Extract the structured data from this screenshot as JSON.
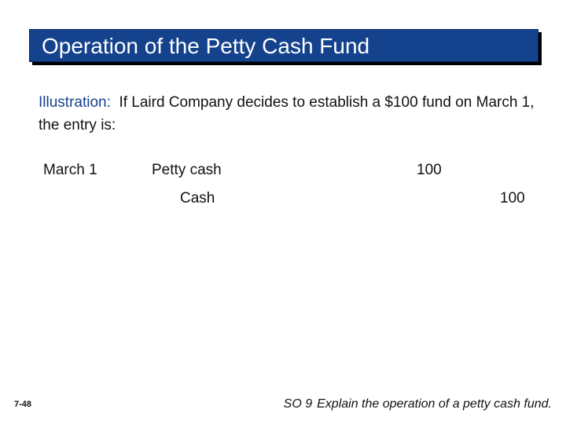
{
  "title": "Operation of the Petty Cash Fund",
  "illustration": {
    "label": "Illustration:",
    "text": "If Laird Company decides to establish a $100 fund on March 1, the entry is:"
  },
  "journal_entry": {
    "date": "March 1",
    "debit_account": "Petty cash",
    "debit_amount": "100",
    "credit_account": "Cash",
    "credit_amount": "100"
  },
  "footer": {
    "page_number": "7-48",
    "so_label": "SO 9",
    "so_text": "Explain the operation of a petty cash fund."
  },
  "colors": {
    "title_bar": "#15428d",
    "title_shadow": "#000000",
    "illustration_label": "#15428d"
  }
}
